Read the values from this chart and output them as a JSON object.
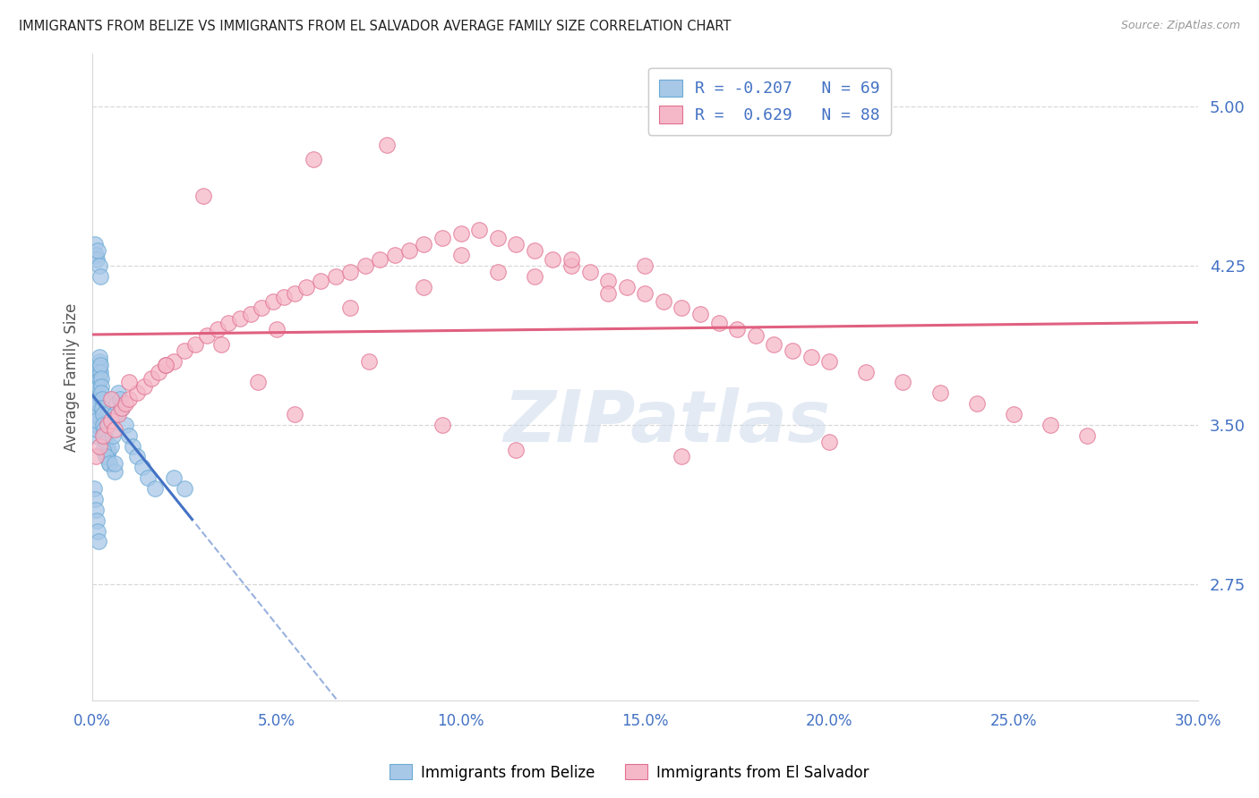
{
  "title": "IMMIGRANTS FROM BELIZE VS IMMIGRANTS FROM EL SALVADOR AVERAGE FAMILY SIZE CORRELATION CHART",
  "source": "Source: ZipAtlas.com",
  "ylabel": "Average Family Size",
  "xmin": 0.0,
  "xmax": 30.0,
  "ymin": 2.2,
  "ymax": 5.25,
  "yticks": [
    2.75,
    3.5,
    4.25,
    5.0
  ],
  "xticks": [
    0.0,
    5.0,
    10.0,
    15.0,
    20.0,
    25.0,
    30.0
  ],
  "belize_color": "#a8c8e8",
  "belize_edge": "#6aaad4",
  "salvador_color": "#f5b8c8",
  "salvador_edge": "#e07090",
  "belize_R": -0.207,
  "belize_N": 69,
  "salvador_R": 0.629,
  "salvador_N": 88,
  "trend_blue": "#4472c4",
  "trend_pink": "#e06080",
  "bg": "#ffffff",
  "grid_color": "#d8d8d8",
  "title_color": "#222222",
  "axis_color": "#4472c4",
  "watermark": "ZIPatlas",
  "belize_x": [
    0.05,
    0.06,
    0.07,
    0.08,
    0.09,
    0.1,
    0.1,
    0.11,
    0.12,
    0.12,
    0.13,
    0.14,
    0.15,
    0.15,
    0.16,
    0.17,
    0.18,
    0.18,
    0.19,
    0.2,
    0.21,
    0.22,
    0.23,
    0.24,
    0.25,
    0.26,
    0.27,
    0.28,
    0.3,
    0.32,
    0.34,
    0.36,
    0.38,
    0.4,
    0.43,
    0.46,
    0.5,
    0.55,
    0.6,
    0.65,
    0.7,
    0.75,
    0.8,
    0.9,
    1.0,
    1.1,
    1.2,
    1.35,
    1.5,
    1.7,
    0.08,
    0.1,
    0.12,
    0.15,
    0.18,
    0.22,
    0.28,
    0.35,
    0.45,
    0.6,
    0.05,
    0.07,
    0.09,
    0.11,
    0.14,
    0.17,
    0.6,
    2.2,
    2.5
  ],
  "belize_y": [
    3.55,
    3.6,
    3.65,
    3.58,
    3.62,
    3.7,
    3.45,
    3.5,
    3.55,
    3.48,
    3.52,
    3.65,
    3.6,
    3.7,
    3.75,
    3.68,
    3.72,
    3.8,
    3.77,
    3.82,
    3.75,
    3.78,
    3.72,
    3.68,
    3.65,
    3.62,
    3.58,
    3.55,
    3.5,
    3.48,
    3.45,
    3.42,
    3.38,
    3.35,
    3.38,
    3.32,
    3.4,
    3.45,
    3.55,
    3.6,
    3.65,
    3.62,
    3.58,
    3.5,
    3.45,
    3.4,
    3.35,
    3.3,
    3.25,
    3.2,
    4.35,
    4.3,
    4.28,
    4.32,
    4.25,
    4.2,
    3.38,
    3.35,
    3.32,
    3.28,
    3.2,
    3.15,
    3.1,
    3.05,
    3.0,
    2.95,
    3.32,
    3.25,
    3.2
  ],
  "salvador_x": [
    0.1,
    0.2,
    0.3,
    0.4,
    0.5,
    0.6,
    0.7,
    0.8,
    0.9,
    1.0,
    1.2,
    1.4,
    1.6,
    1.8,
    2.0,
    2.2,
    2.5,
    2.8,
    3.1,
    3.4,
    3.7,
    4.0,
    4.3,
    4.6,
    4.9,
    5.2,
    5.5,
    5.8,
    6.2,
    6.6,
    7.0,
    7.4,
    7.8,
    8.2,
    8.6,
    9.0,
    9.5,
    10.0,
    10.5,
    11.0,
    11.5,
    12.0,
    12.5,
    13.0,
    13.5,
    14.0,
    14.5,
    15.0,
    15.5,
    16.0,
    16.5,
    17.0,
    17.5,
    18.0,
    18.5,
    19.0,
    19.5,
    20.0,
    21.0,
    22.0,
    23.0,
    24.0,
    25.0,
    26.0,
    27.0,
    0.5,
    1.0,
    2.0,
    3.5,
    5.0,
    7.0,
    9.0,
    11.0,
    13.0,
    15.0,
    3.0,
    6.0,
    8.0,
    10.0,
    12.0,
    14.0,
    4.5,
    7.5,
    5.5,
    9.5,
    11.5,
    16.0,
    20.0
  ],
  "salvador_y": [
    3.35,
    3.4,
    3.45,
    3.5,
    3.52,
    3.48,
    3.55,
    3.58,
    3.6,
    3.62,
    3.65,
    3.68,
    3.72,
    3.75,
    3.78,
    3.8,
    3.85,
    3.88,
    3.92,
    3.95,
    3.98,
    4.0,
    4.02,
    4.05,
    4.08,
    4.1,
    4.12,
    4.15,
    4.18,
    4.2,
    4.22,
    4.25,
    4.28,
    4.3,
    4.32,
    4.35,
    4.38,
    4.4,
    4.42,
    4.38,
    4.35,
    4.32,
    4.28,
    4.25,
    4.22,
    4.18,
    4.15,
    4.12,
    4.08,
    4.05,
    4.02,
    3.98,
    3.95,
    3.92,
    3.88,
    3.85,
    3.82,
    3.8,
    3.75,
    3.7,
    3.65,
    3.6,
    3.55,
    3.5,
    3.45,
    3.62,
    3.7,
    3.78,
    3.88,
    3.95,
    4.05,
    4.15,
    4.22,
    4.28,
    4.25,
    4.58,
    4.75,
    4.82,
    4.3,
    4.2,
    4.12,
    3.7,
    3.8,
    3.55,
    3.5,
    3.38,
    3.35,
    3.42
  ]
}
